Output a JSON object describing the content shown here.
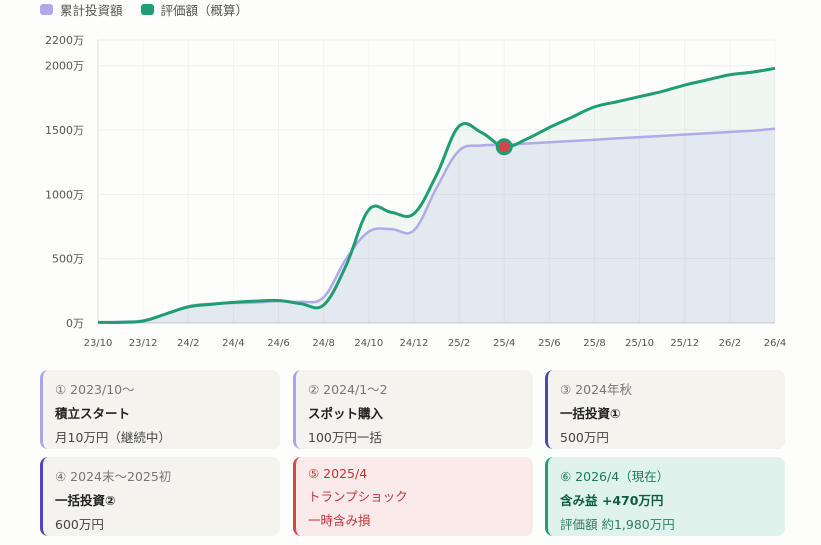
{
  "chart_data": {
    "type": "line",
    "title": "",
    "xlabel": "",
    "ylabel": "",
    "x": [
      "23/10",
      "23/11",
      "23/12",
      "24/1",
      "24/2",
      "24/3",
      "24/4",
      "24/5",
      "24/6",
      "24/7",
      "24/8",
      "24/9",
      "24/10",
      "24/11",
      "24/12",
      "25/1",
      "25/2",
      "25/3",
      "25/4",
      "25/5",
      "25/6",
      "25/7",
      "25/8",
      "25/9",
      "25/10",
      "25/11",
      "25/12",
      "26/1",
      "26/2",
      "26/3",
      "26/4"
    ],
    "x_tick_labels": [
      "23/10",
      "23/12",
      "24/2",
      "24/4",
      "24/6",
      "24/8",
      "24/10",
      "24/12",
      "25/2",
      "25/4",
      "25/6",
      "25/8",
      "25/10",
      "25/12",
      "26/2",
      "26/4"
    ],
    "y_ticks": [
      0,
      500,
      1000,
      1500,
      2000,
      2200
    ],
    "y_tick_labels": [
      "0万",
      "500万",
      "1000万",
      "1500万",
      "2000万",
      "2200万"
    ],
    "ylim": [
      0,
      2200
    ],
    "grid": true,
    "legend_position": "top-left",
    "series": [
      {
        "name": "累計投資額",
        "color": "#b0aaea",
        "values": [
          5,
          10,
          20,
          70,
          130,
          150,
          155,
          160,
          170,
          165,
          200,
          500,
          710,
          730,
          720,
          1050,
          1340,
          1380,
          1385,
          1395,
          1405,
          1415,
          1425,
          1435,
          1445,
          1455,
          1465,
          1475,
          1485,
          1495,
          1510
        ]
      },
      {
        "name": "評価額（概算）",
        "color": "#1e9e72",
        "values": [
          5,
          5,
          15,
          70,
          125,
          145,
          160,
          170,
          175,
          150,
          140,
          450,
          880,
          860,
          850,
          1150,
          1530,
          1480,
          1370,
          1430,
          1520,
          1600,
          1680,
          1720,
          1760,
          1800,
          1850,
          1890,
          1930,
          1950,
          1980
        ]
      }
    ],
    "marker": {
      "x": "25/4",
      "value": 1370,
      "color": "#d9434a"
    }
  },
  "cards": [
    {
      "date": "① 2023/10〜",
      "title": "積立スタート",
      "sub": "月10万円（継続中）"
    },
    {
      "date": "② 2024/1〜2",
      "title": "スポット購入",
      "sub": "100万円一括"
    },
    {
      "date": "③ 2024年秋",
      "title": "一括投資①",
      "sub": "500万円"
    },
    {
      "date": "④ 2024末〜2025初",
      "title": "一括投資②",
      "sub": "600万円"
    },
    {
      "date": "⑤ 2025/4",
      "title": "トランプショック",
      "sub": "一時含み損"
    },
    {
      "date": "⑥ 2026/4（現在）",
      "title": "含み益 +470万円",
      "sub": "評価額 約1,980万円"
    }
  ]
}
